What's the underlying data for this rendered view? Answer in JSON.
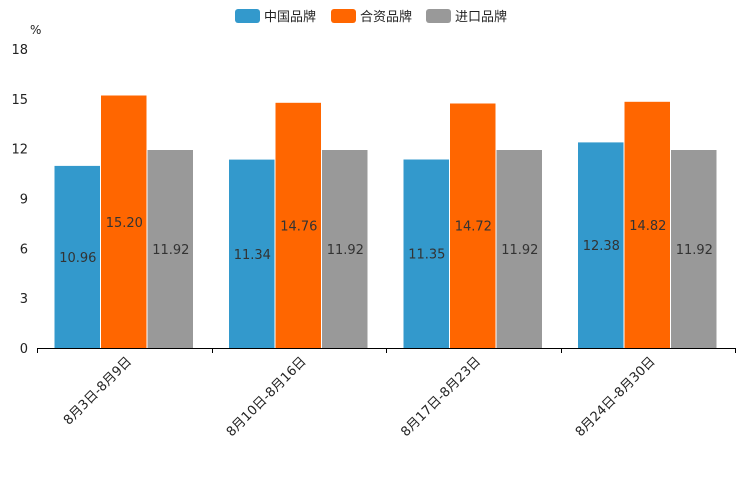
{
  "chart_data": {
    "type": "bar",
    "title": "",
    "xlabel": "",
    "ylabel": "%",
    "ylim": [
      0,
      18
    ],
    "yticks": [
      0,
      3,
      6,
      9,
      12,
      15,
      18
    ],
    "grid": false,
    "legend_position": "top-center",
    "categories": [
      "8月3日-8月9日",
      "8月10日-8月16日",
      "8月17日-8月23日",
      "8月24日-8月30日"
    ],
    "series": [
      {
        "name": "中国品牌",
        "color": "#3399cc",
        "values": [
          10.96,
          11.34,
          11.35,
          12.38
        ],
        "labels": [
          "10.96",
          "11.34",
          "11.35",
          "12.38"
        ]
      },
      {
        "name": "合资品牌",
        "color": "#ff6600",
        "values": [
          15.2,
          14.76,
          14.72,
          14.82
        ],
        "labels": [
          "15.20",
          "14.76",
          "14.72",
          "14.82"
        ]
      },
      {
        "name": "进口品牌",
        "color": "#999999",
        "values": [
          11.92,
          11.92,
          11.92,
          11.92
        ],
        "labels": [
          "11.92",
          "11.92",
          "11.92",
          "11.92"
        ]
      }
    ]
  }
}
